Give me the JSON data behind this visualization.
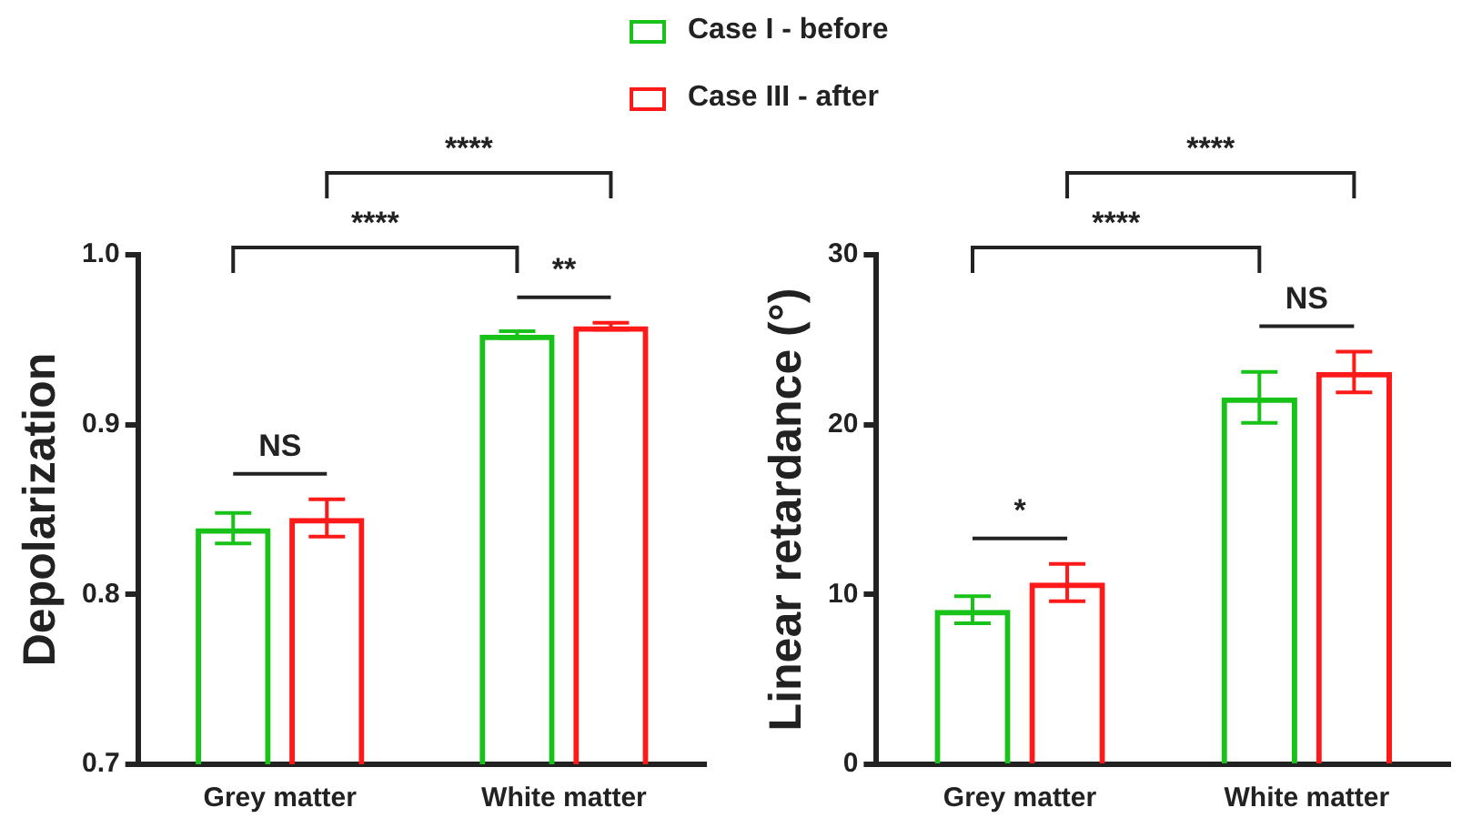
{
  "chart_data": [
    {
      "type": "bar",
      "ylabel": "Depolarization",
      "categories": [
        "Grey matter",
        "White matter"
      ],
      "ylim": [
        0.7,
        1.0
      ],
      "yticks": [
        {
          "value": 0.7,
          "label": "0.7"
        },
        {
          "value": 0.8,
          "label": "0.8"
        },
        {
          "value": 0.9,
          "label": "0.9"
        },
        {
          "value": 1.0,
          "label": "1.0"
        }
      ],
      "grid": false,
      "legend": "top",
      "series": [
        {
          "name": "Case I - before",
          "color": "#19c219",
          "values": [
            0.839,
            0.953
          ],
          "errors": [
            0.009,
            0.002
          ]
        },
        {
          "name": "Case III - after",
          "color": "#ff1a1a",
          "values": [
            0.845,
            0.958
          ],
          "errors": [
            0.011,
            0.002
          ]
        }
      ],
      "annotations": [
        "****",
        "****",
        "NS",
        "**"
      ]
    },
    {
      "type": "bar",
      "ylabel": "Linear retardance (°)",
      "categories": [
        "Grey matter",
        "White matter"
      ],
      "ylim": [
        0,
        30
      ],
      "yticks": [
        0,
        10,
        20,
        30
      ],
      "grid": false,
      "series": [
        {
          "color": "#19c219",
          "values": [
            9.1,
            21.6
          ],
          "errors": [
            0.8,
            1.5
          ]
        },
        {
          "color": "#ff1a1a",
          "values": [
            10.7,
            23.1
          ],
          "errors": [
            1.1,
            1.2
          ]
        }
      ],
      "annotations": [
        "****",
        "****",
        "*",
        "NS"
      ]
    }
  ]
}
